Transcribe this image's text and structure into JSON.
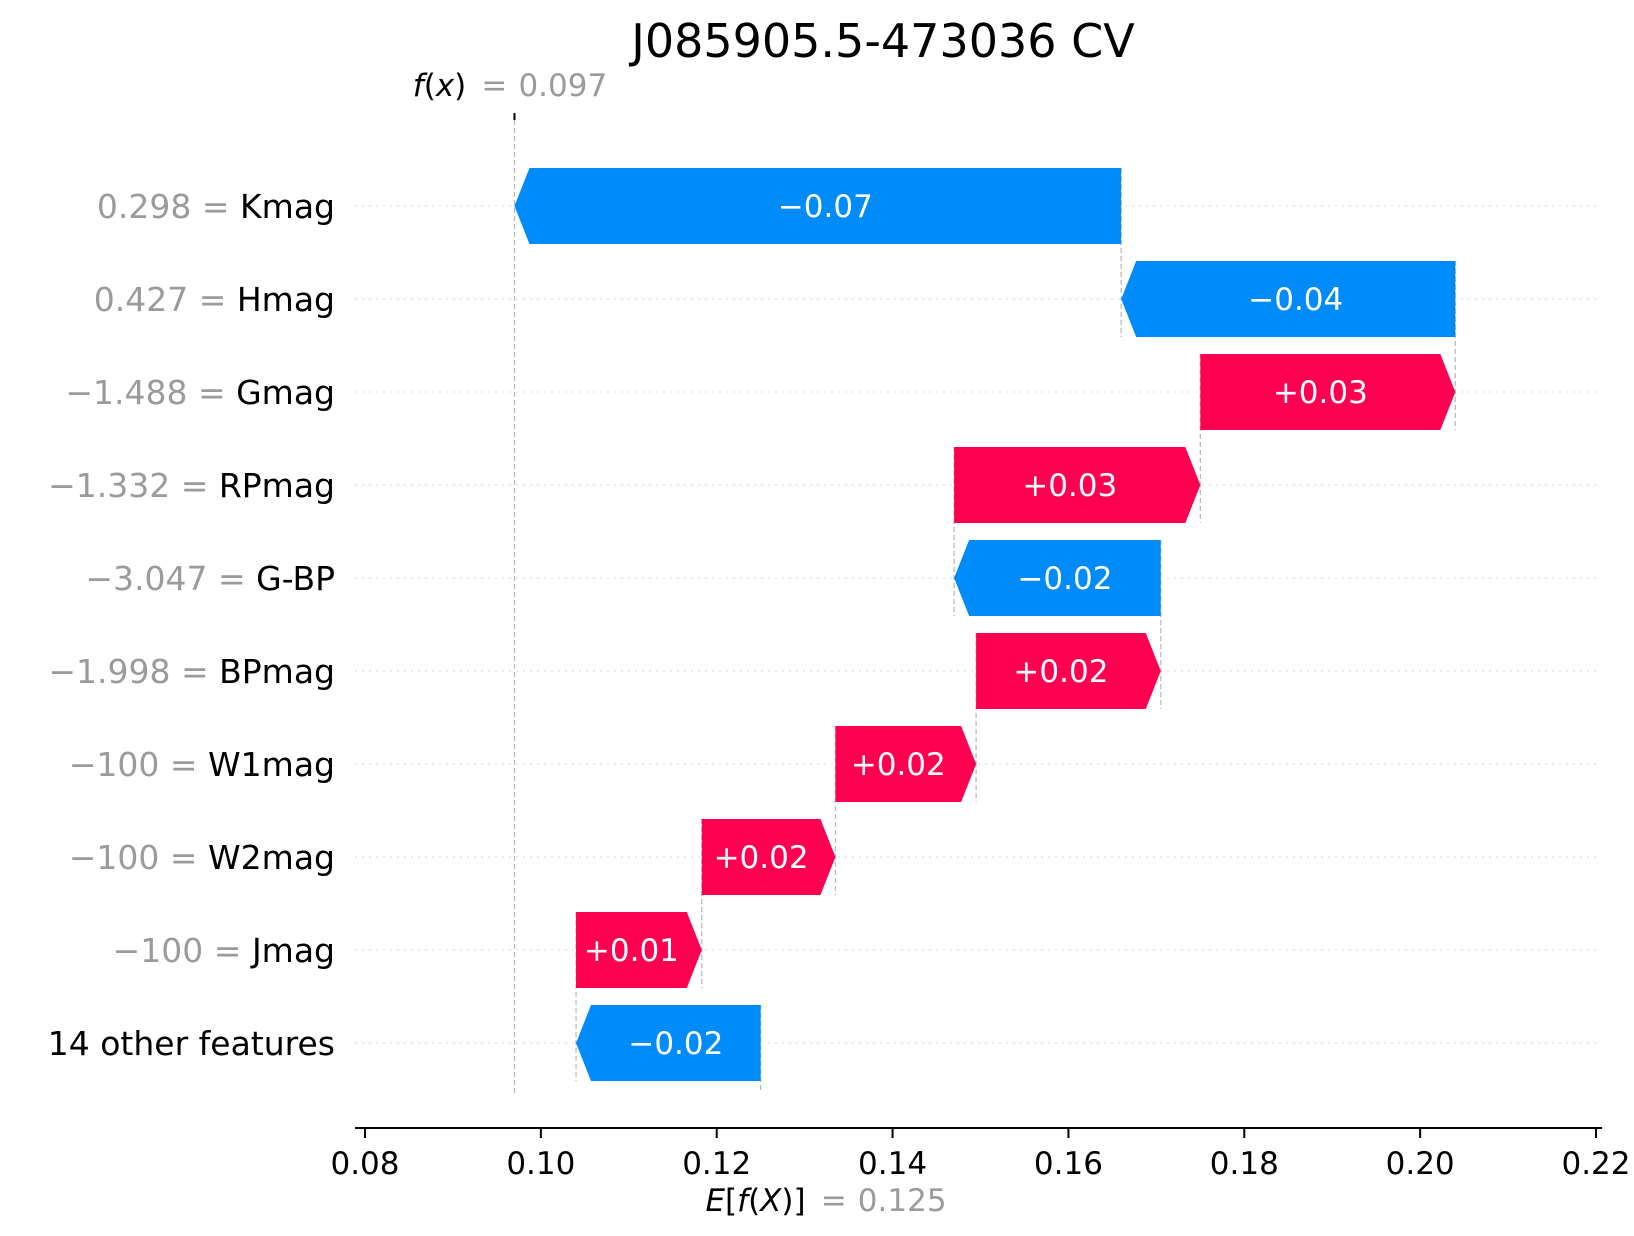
{
  "chart_data": {
    "type": "bar",
    "subtype": "shap-waterfall",
    "title": "J085905.5-473036 CV",
    "fx": {
      "label_f": "f",
      "label_x": "x",
      "eq": "=",
      "value_text": "0.097",
      "value": 0.097
    },
    "efx": {
      "label_pre": "E[",
      "label_f": "f",
      "label_mid": "(",
      "label_X": "X",
      "label_post": ")]",
      "eq": "=",
      "value_text": "0.125",
      "value": 0.125
    },
    "features": [
      {
        "value": "0.298",
        "eq": "=",
        "name": "Kmag",
        "start": 0.166,
        "end": 0.097,
        "label": "−0.07",
        "sign": "neg"
      },
      {
        "value": "0.427",
        "eq": "=",
        "name": "Hmag",
        "start": 0.204,
        "end": 0.166,
        "label": "−0.04",
        "sign": "neg"
      },
      {
        "value": "−1.488",
        "eq": "=",
        "name": "Gmag",
        "start": 0.175,
        "end": 0.204,
        "label": "+0.03",
        "sign": "pos"
      },
      {
        "value": "−1.332",
        "eq": "=",
        "name": "RPmag",
        "start": 0.147,
        "end": 0.175,
        "label": "+0.03",
        "sign": "pos"
      },
      {
        "value": "−3.047",
        "eq": "=",
        "name": "G-BP",
        "start": 0.1705,
        "end": 0.147,
        "label": "−0.02",
        "sign": "neg"
      },
      {
        "value": "−1.998",
        "eq": "=",
        "name": "BPmag",
        "start": 0.1495,
        "end": 0.1705,
        "label": "+0.02",
        "sign": "pos"
      },
      {
        "value": "−100",
        "eq": "=",
        "name": "W1mag",
        "start": 0.1335,
        "end": 0.1495,
        "label": "+0.02",
        "sign": "pos"
      },
      {
        "value": "−100",
        "eq": "=",
        "name": "W2mag",
        "start": 0.1183,
        "end": 0.1335,
        "label": "+0.02",
        "sign": "pos"
      },
      {
        "value": "−100",
        "eq": "=",
        "name": "Jmag",
        "start": 0.104,
        "end": 0.1183,
        "label": "+0.01",
        "sign": "pos"
      },
      {
        "value": "",
        "eq": "",
        "name": "14 other features",
        "start": 0.125,
        "end": 0.104,
        "label": "−0.02",
        "sign": "neg"
      }
    ],
    "xlim": [
      0.08,
      0.22
    ],
    "xticks": [
      0.08,
      0.1,
      0.12,
      0.14,
      0.16,
      0.18,
      0.2,
      0.22
    ],
    "xtick_labels": [
      "0.08",
      "0.10",
      "0.12",
      "0.14",
      "0.16",
      "0.18",
      "0.20",
      "0.22"
    ],
    "grid": "horizontal-dotted",
    "colors": {
      "positive": "#ff0051",
      "negative": "#008bfb",
      "muted": "#9b9b9b",
      "text": "#000000",
      "axis": "#000000",
      "grid": "#e6e6e6",
      "connector": "#bbbbbb"
    }
  }
}
